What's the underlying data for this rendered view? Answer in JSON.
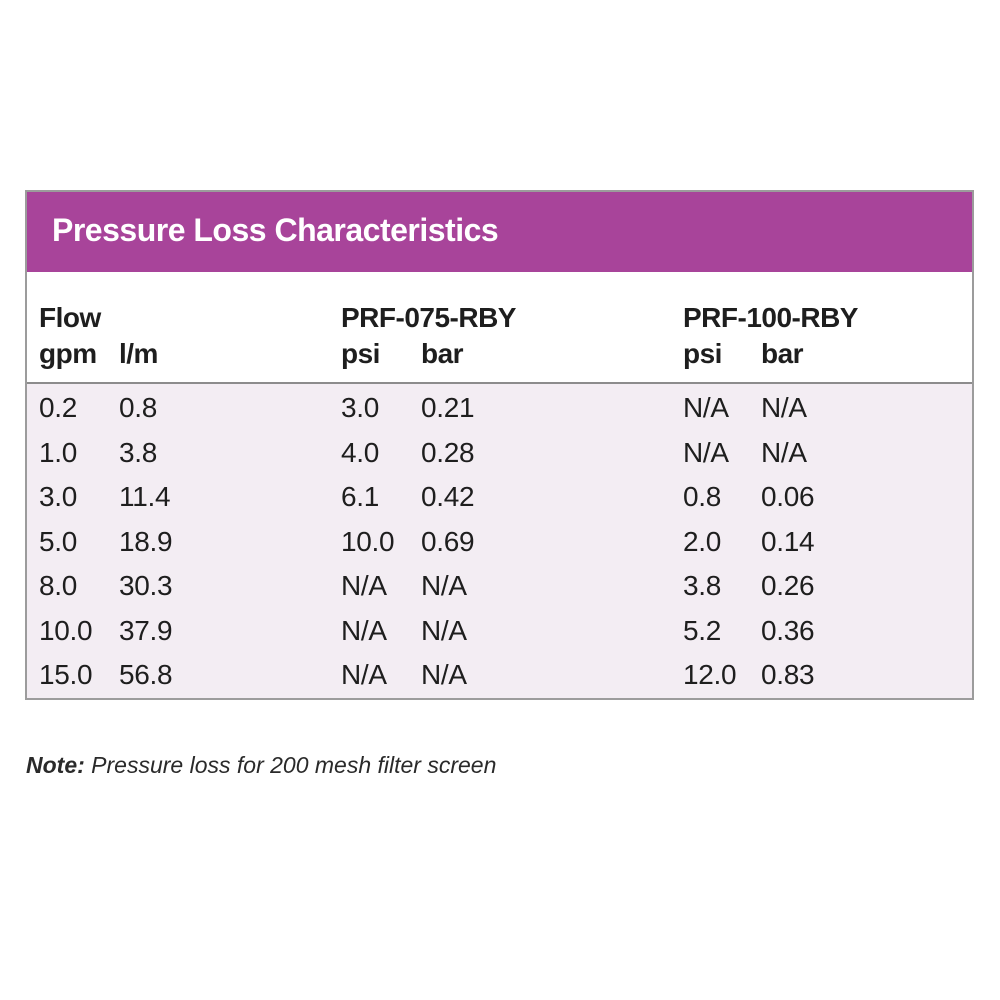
{
  "title": "Pressure Loss Characteristics",
  "headers": {
    "flow": "Flow",
    "gpm": "gpm",
    "lpm": "l/m",
    "model_a": "PRF-075-RBY",
    "model_b": "PRF-100-RBY",
    "a_psi": "psi",
    "a_bar": "bar",
    "b_psi": "psi",
    "b_bar": "bar"
  },
  "rows": [
    {
      "gpm": "0.2",
      "lpm": "0.8",
      "a_psi": "3.0",
      "a_bar": "0.21",
      "b_psi": "N/A",
      "b_bar": "N/A"
    },
    {
      "gpm": "1.0",
      "lpm": "3.8",
      "a_psi": "4.0",
      "a_bar": "0.28",
      "b_psi": "N/A",
      "b_bar": "N/A"
    },
    {
      "gpm": "3.0",
      "lpm": "11.4",
      "a_psi": "6.1",
      "a_bar": "0.42",
      "b_psi": "0.8",
      "b_bar": "0.06"
    },
    {
      "gpm": "5.0",
      "lpm": "18.9",
      "a_psi": "10.0",
      "a_bar": "0.69",
      "b_psi": "2.0",
      "b_bar": "0.14"
    },
    {
      "gpm": "8.0",
      "lpm": "30.3",
      "a_psi": "N/A",
      "a_bar": "N/A",
      "b_psi": "3.8",
      "b_bar": "0.26"
    },
    {
      "gpm": "10.0",
      "lpm": "37.9",
      "a_psi": "N/A",
      "a_bar": "N/A",
      "b_psi": "5.2",
      "b_bar": "0.36"
    },
    {
      "gpm": "15.0",
      "lpm": "56.8",
      "a_psi": "N/A",
      "a_bar": "N/A",
      "b_psi": "12.0",
      "b_bar": "0.83"
    }
  ],
  "note": {
    "label": "Note:",
    "text": " Pressure loss for 200 mesh filter screen"
  },
  "colors": {
    "title_bar": "#a8449a",
    "body_background": "#f3edf3",
    "border": "#9c9c9c"
  }
}
